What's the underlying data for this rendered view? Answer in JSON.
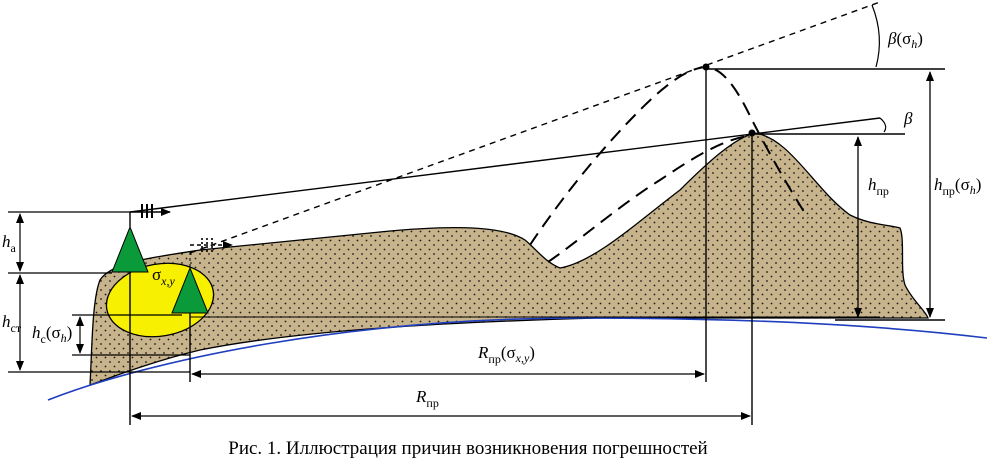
{
  "labels": {
    "beta_sigma": {
      "main": "β",
      "rest": "(σ",
      "sub": "h",
      "close": ")"
    },
    "beta": "β",
    "h_pr": {
      "main": "h",
      "sub": "пр"
    },
    "h_pr_sigma": {
      "main": "h",
      "sub": "пр",
      "rest": "(σ",
      "sub2": "h",
      "close": ")"
    },
    "h_a": {
      "main": "h",
      "sub": "а"
    },
    "h_st": {
      "main": "h",
      "sub": "ст"
    },
    "h_c_sigma": {
      "main": "h",
      "sub": "с",
      "rest": "(σ",
      "sub2": "h",
      "close": ")"
    },
    "sigma_xy": {
      "main": "σ",
      "sub": "x,y"
    },
    "R_pr_sigma": {
      "main": "R",
      "sub": "пр",
      "rest": "(σ",
      "sub2": "x,y",
      "close": ")"
    },
    "R_pr": {
      "main": "R",
      "sub": "пр"
    }
  },
  "caption": "Рис. 1. Иллюстрация причин возникновения погрешностей",
  "colors": {
    "terrain": "#c8b48c",
    "terrain_dots": "#1a1a1a",
    "earth_curve": "#1f3fbf",
    "ellipse": "#f7f000",
    "triangle": "#0a9a3a",
    "line": "#000000"
  }
}
